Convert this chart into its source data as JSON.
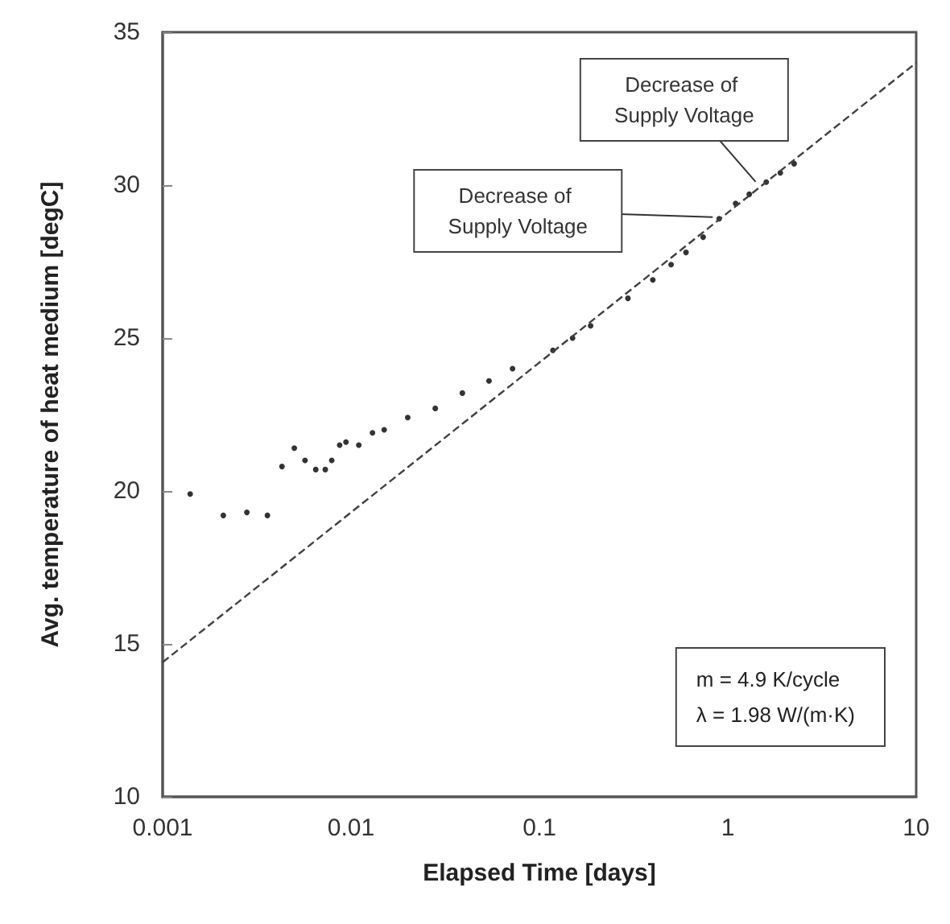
{
  "chart_data": {
    "type": "scatter",
    "xlabel": "Elapsed Time [days]",
    "ylabel": "Avg. temperature of heat medium [degC]",
    "log": "x",
    "xlim": [
      0.001,
      10
    ],
    "xticks": [
      0.001,
      0.01,
      0.1,
      1,
      10
    ],
    "ylim": [
      10,
      35
    ],
    "yticks": [
      10,
      15,
      20,
      25,
      30,
      35
    ],
    "grid": false,
    "series": [
      {
        "color": "#000000",
        "marker": "circle",
        "x": [
          0.0014,
          0.0021,
          0.0028,
          0.0036,
          0.0043,
          0.005,
          0.0057,
          0.0065,
          0.0073,
          0.0079,
          0.0087,
          0.0094,
          0.011,
          0.013,
          0.015,
          0.02,
          0.028,
          0.039,
          0.054,
          0.072,
          0.118,
          0.15,
          0.187,
          0.295,
          0.4,
          0.5,
          0.6,
          0.74,
          0.9,
          1.1,
          1.3,
          1.6,
          1.9,
          2.25
        ],
        "values": [
          19.9,
          19.2,
          19.3,
          19.2,
          20.8,
          21.4,
          21.0,
          20.7,
          20.7,
          21.0,
          21.5,
          21.6,
          21.5,
          21.9,
          22.0,
          22.4,
          22.7,
          23.2,
          23.6,
          24.0,
          24.6,
          25.0,
          25.4,
          26.3,
          26.9,
          27.4,
          27.8,
          28.3,
          28.9,
          29.4,
          29.7,
          30.1,
          30.4,
          30.7
        ]
      },
      {
        "type": "line",
        "color": "#404040",
        "line_style": "dashed",
        "marker": "none",
        "x": [
          0.001,
          10
        ],
        "values": [
          14.4,
          34.0
        ]
      }
    ],
    "annotations": [
      {
        "text": "Decrease of Supply Voltage",
        "x": 1.48,
        "y": 29.95
      },
      {
        "text": "Decrease of Supply Voltage",
        "x": 0.9,
        "y": 28.95
      },
      "m = 4.9 K/cycle",
      "λ = 1.98 W/(m·K)"
    ]
  }
}
